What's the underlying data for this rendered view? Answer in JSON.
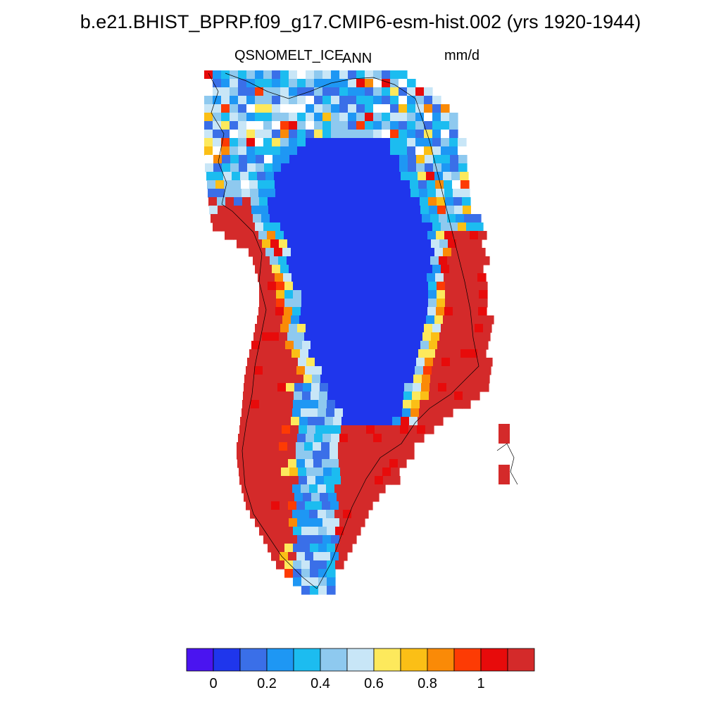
{
  "title": "b.e21.BHIST_BPRP.f09_g17.CMIP6-esm-hist.002 (yrs 1920-1944)",
  "subtitle_left": "QSNOMELT_ICE",
  "subtitle_center": "ANN",
  "subtitle_right": "mm/d",
  "colors": {
    "palette": [
      "#4a14f0",
      "#1f36ec",
      "#3a6fe8",
      "#1e97f4",
      "#1cbcf0",
      "#8ec9ef",
      "#c8e6f7",
      "#fde95c",
      "#fbbf16",
      "#fa8a07",
      "#fd3b04",
      "#e70b0b",
      "#d42a2a"
    ],
    "ice_core": "#1f36ec",
    "land_edge": "#d42a2a"
  },
  "colorbar": {
    "tick_labels": [
      "0",
      "0.2",
      "0.4",
      "0.6",
      "0.8",
      "1"
    ]
  }
}
